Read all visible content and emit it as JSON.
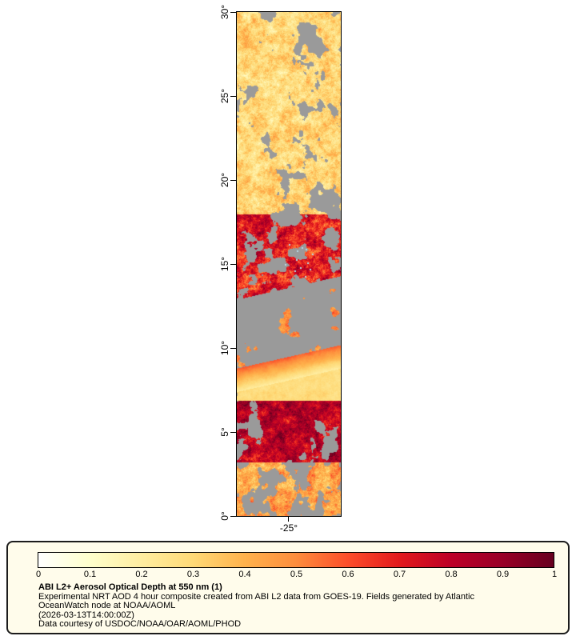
{
  "figure": {
    "lat_tick_labels": [
      "30°",
      "25°",
      "20°",
      "15°",
      "10°",
      "5°",
      "0°"
    ],
    "lon_tick_labels": [
      "-25°"
    ]
  },
  "legend": {
    "tick_labels": [
      "0",
      "0.1",
      "0.2",
      "0.3",
      "0.4",
      "0.5",
      "0.6",
      "0.7",
      "0.8",
      "0.9",
      "1"
    ],
    "title": "ABI L2+ Aerosol Optical Depth at 550 nm (1)",
    "line1": "Experimental NRT AOD 4 hour composite created from ABI L2 data from GOES-19. Fields generated by Atlantic",
    "line2": "OceanWatch node at NOAA/AOML",
    "timestamp": "(2026-03-13T14:00:00Z)",
    "credit": "Data courtesy of USDOC/NOAA/OAR/AOML/PHOD"
  },
  "chart_data": {
    "type": "heatmap",
    "title": "ABI L2+ Aerosol Optical Depth at 550 nm (1)",
    "lat_axis": {
      "min": 0,
      "max": 30,
      "tick_step_deg": 5,
      "tick_labels_top_down": [
        "30°",
        "25°",
        "20°",
        "15°",
        "10°",
        "5°",
        "0°"
      ]
    },
    "lon_axis": {
      "tick_labels": [
        "-25°"
      ]
    },
    "colorbar": {
      "min": 0,
      "max": 1,
      "tick_labels": [
        "0",
        "0.1",
        "0.2",
        "0.3",
        "0.4",
        "0.5",
        "0.6",
        "0.7",
        "0.8",
        "0.9",
        "1"
      ],
      "colors": [
        "#ffffff",
        "#ffffcc",
        "#ffeda0",
        "#fed976",
        "#feb24c",
        "#fd8d3c",
        "#fc4e2a",
        "#e31a1c",
        "#bd0026",
        "#990026",
        "#67001f"
      ]
    },
    "missing_color": "#9a9a9a",
    "cloud_speck_color": "#b4d8e8",
    "slant_deg_per_width": 1.4,
    "bands": [
      {
        "lat_min": 18,
        "lat_max": 30,
        "aod": 0.3,
        "amp": 0.3,
        "gray_threshold": 0.38,
        "slant": 0
      },
      {
        "lat_min": 12.9,
        "lat_max": 18,
        "aod": 0.7,
        "amp": 0.45,
        "gray_threshold": 0.4,
        "slant": 1
      },
      {
        "lat_min": 8.8,
        "lat_max": 12.9,
        "aod": 0.5,
        "amp": 0.25,
        "gray_threshold": 0.75,
        "slant": 1
      },
      {
        "lat_min": 7.4,
        "lat_max": 8.8,
        "gradient": true,
        "aod_top": 0.58,
        "aod_bottom": 0.2,
        "amp": 0.06,
        "gray_threshold": 0.08,
        "slant": 1
      },
      {
        "lat_min": 6.9,
        "lat_max": 7.4,
        "aod": 0.28,
        "amp": 0.1,
        "gray_threshold": 0.08,
        "slant": 0
      },
      {
        "lat_min": 3.2,
        "lat_max": 6.9,
        "aod": 0.8,
        "amp": 0.4,
        "gray_threshold": 0.33,
        "slant": 0
      },
      {
        "lat_min": 0,
        "lat_max": 3.2,
        "aod": 0.45,
        "amp": 0.35,
        "gray_threshold": 0.47,
        "slant": 0
      }
    ],
    "cloud_specks": [
      {
        "x": 0.5,
        "lat": 16.2
      },
      {
        "x": 0.62,
        "lat": 16.0
      },
      {
        "x": 0.66,
        "lat": 15.9
      },
      {
        "x": 0.57,
        "lat": 15.3
      },
      {
        "x": 0.68,
        "lat": 15.1
      },
      {
        "x": 0.61,
        "lat": 14.8
      },
      {
        "x": 0.55,
        "lat": 14.6
      },
      {
        "x": 0.72,
        "lat": 15.6
      },
      {
        "x": 0.46,
        "lat": 15.0
      },
      {
        "x": 0.65,
        "lat": 14.3
      },
      {
        "x": 0.58,
        "lat": 15.8
      },
      {
        "x": 0.7,
        "lat": 14.7
      }
    ]
  }
}
